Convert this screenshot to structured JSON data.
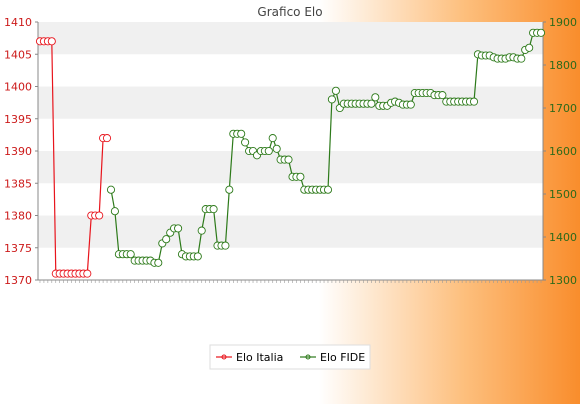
{
  "chart_data": {
    "type": "line",
    "title": "Grafico Elo",
    "colors": {
      "italia": "#e8141c",
      "fide": "#2d7a1a",
      "left_axis": "#cc1a1a",
      "right_axis": "#2d6a1a"
    },
    "left_axis": {
      "range": [
        1370,
        1410
      ],
      "ticks": [
        1370,
        1375,
        1380,
        1385,
        1390,
        1395,
        1400,
        1405,
        1410
      ]
    },
    "right_axis": {
      "range": [
        1300,
        1900
      ],
      "ticks": [
        1300,
        1400,
        1500,
        1600,
        1700,
        1800,
        1900
      ]
    },
    "grid": "horizontal bands",
    "legend": {
      "placement": "bottom-center",
      "items": [
        {
          "label": "Elo Italia",
          "series": "italia"
        },
        {
          "label": "Elo FIDE",
          "series": "fide"
        }
      ]
    },
    "x_count": 110,
    "series": [
      {
        "key": "italia",
        "name": "Elo Italia",
        "axis": "left",
        "points": [
          [
            0,
            1407
          ],
          [
            1,
            1407
          ],
          [
            2,
            1407
          ],
          [
            3,
            1407
          ],
          [
            4,
            1371
          ],
          [
            5,
            1371
          ],
          [
            6,
            1371
          ],
          [
            7,
            1371
          ],
          [
            8,
            1371
          ],
          [
            9,
            1371
          ],
          [
            10,
            1371
          ],
          [
            11,
            1371
          ],
          [
            12,
            1371
          ],
          [
            13,
            1380
          ],
          [
            14,
            1380
          ],
          [
            15,
            1380
          ],
          [
            16,
            1392
          ],
          [
            17,
            1392
          ]
        ]
      },
      {
        "key": "fide",
        "name": "Elo FIDE",
        "axis": "right",
        "points": [
          [
            18,
            1510
          ],
          [
            19,
            1460
          ],
          [
            20,
            1360
          ],
          [
            21,
            1360
          ],
          [
            22,
            1360
          ],
          [
            23,
            1360
          ],
          [
            24,
            1345
          ],
          [
            25,
            1345
          ],
          [
            26,
            1345
          ],
          [
            27,
            1345
          ],
          [
            28,
            1345
          ],
          [
            29,
            1340
          ],
          [
            30,
            1340
          ],
          [
            31,
            1385
          ],
          [
            32,
            1395
          ],
          [
            33,
            1410
          ],
          [
            34,
            1420
          ],
          [
            35,
            1420
          ],
          [
            36,
            1360
          ],
          [
            37,
            1355
          ],
          [
            38,
            1355
          ],
          [
            39,
            1355
          ],
          [
            40,
            1355
          ],
          [
            41,
            1415
          ],
          [
            42,
            1465
          ],
          [
            43,
            1465
          ],
          [
            44,
            1465
          ],
          [
            45,
            1380
          ],
          [
            46,
            1380
          ],
          [
            47,
            1380
          ],
          [
            48,
            1510
          ],
          [
            49,
            1640
          ],
          [
            50,
            1640
          ],
          [
            51,
            1640
          ],
          [
            52,
            1620
          ],
          [
            53,
            1600
          ],
          [
            54,
            1600
          ],
          [
            55,
            1590
          ],
          [
            56,
            1600
          ],
          [
            57,
            1600
          ],
          [
            58,
            1600
          ],
          [
            59,
            1630
          ],
          [
            60,
            1605
          ],
          [
            61,
            1580
          ],
          [
            62,
            1580
          ],
          [
            63,
            1580
          ],
          [
            64,
            1540
          ],
          [
            65,
            1540
          ],
          [
            66,
            1540
          ],
          [
            67,
            1510
          ],
          [
            68,
            1510
          ],
          [
            69,
            1510
          ],
          [
            70,
            1510
          ],
          [
            71,
            1510
          ],
          [
            72,
            1510
          ],
          [
            73,
            1510
          ],
          [
            74,
            1720
          ],
          [
            75,
            1740
          ],
          [
            76,
            1700
          ],
          [
            77,
            1710
          ],
          [
            78,
            1710
          ],
          [
            79,
            1710
          ],
          [
            80,
            1710
          ],
          [
            81,
            1710
          ],
          [
            82,
            1710
          ],
          [
            83,
            1710
          ],
          [
            84,
            1710
          ],
          [
            85,
            1725
          ],
          [
            86,
            1705
          ],
          [
            87,
            1705
          ],
          [
            88,
            1705
          ],
          [
            89,
            1712
          ],
          [
            90,
            1715
          ],
          [
            91,
            1712
          ],
          [
            92,
            1708
          ],
          [
            93,
            1708
          ],
          [
            94,
            1708
          ],
          [
            95,
            1735
          ],
          [
            96,
            1735
          ],
          [
            97,
            1735
          ],
          [
            98,
            1735
          ],
          [
            99,
            1735
          ],
          [
            100,
            1730
          ],
          [
            101,
            1730
          ],
          [
            102,
            1730
          ],
          [
            103,
            1715
          ],
          [
            104,
            1715
          ],
          [
            105,
            1715
          ],
          [
            106,
            1715
          ],
          [
            107,
            1715
          ],
          [
            108,
            1715
          ],
          [
            109,
            1715
          ],
          [
            110,
            1715
          ],
          [
            111,
            1825
          ],
          [
            112,
            1822
          ],
          [
            113,
            1822
          ],
          [
            114,
            1822
          ],
          [
            115,
            1818
          ],
          [
            116,
            1815
          ],
          [
            117,
            1815
          ],
          [
            118,
            1815
          ],
          [
            119,
            1818
          ],
          [
            120,
            1818
          ],
          [
            121,
            1815
          ],
          [
            122,
            1815
          ],
          [
            123,
            1835
          ],
          [
            124,
            1840
          ],
          [
            125,
            1875
          ],
          [
            126,
            1875
          ],
          [
            127,
            1875
          ]
        ]
      }
    ]
  }
}
